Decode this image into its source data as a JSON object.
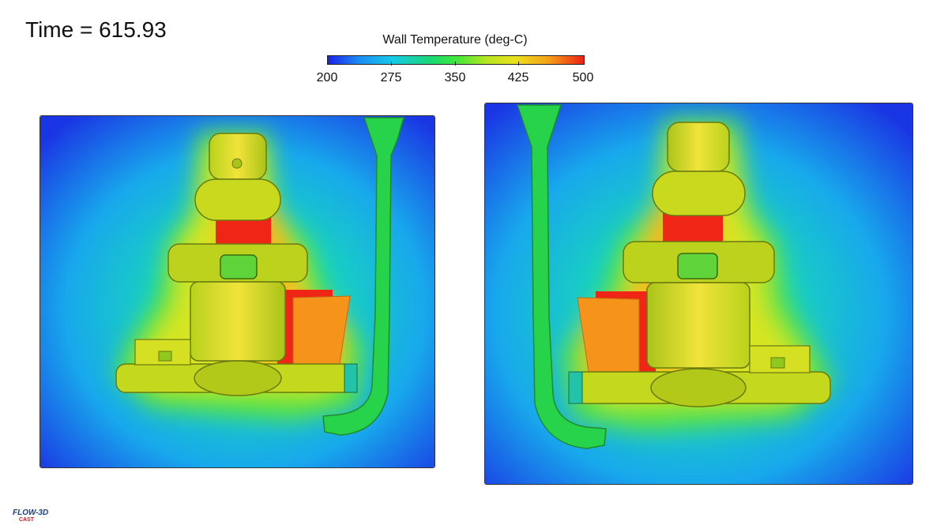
{
  "time_label": "Time = 615.93",
  "colorbar": {
    "title": "Wall Temperature (deg-C)",
    "min": 200,
    "max": 500,
    "ticks": [
      "200",
      "275",
      "350",
      "425",
      "500"
    ]
  },
  "logo": {
    "main": "FLOW-3D",
    "sub": "CAST"
  },
  "colors": {
    "cold": "#1a22e6",
    "cool": "#16c9e8",
    "mid": "#3ee83a",
    "warm": "#eae11c",
    "hot": "#ee2014"
  }
}
